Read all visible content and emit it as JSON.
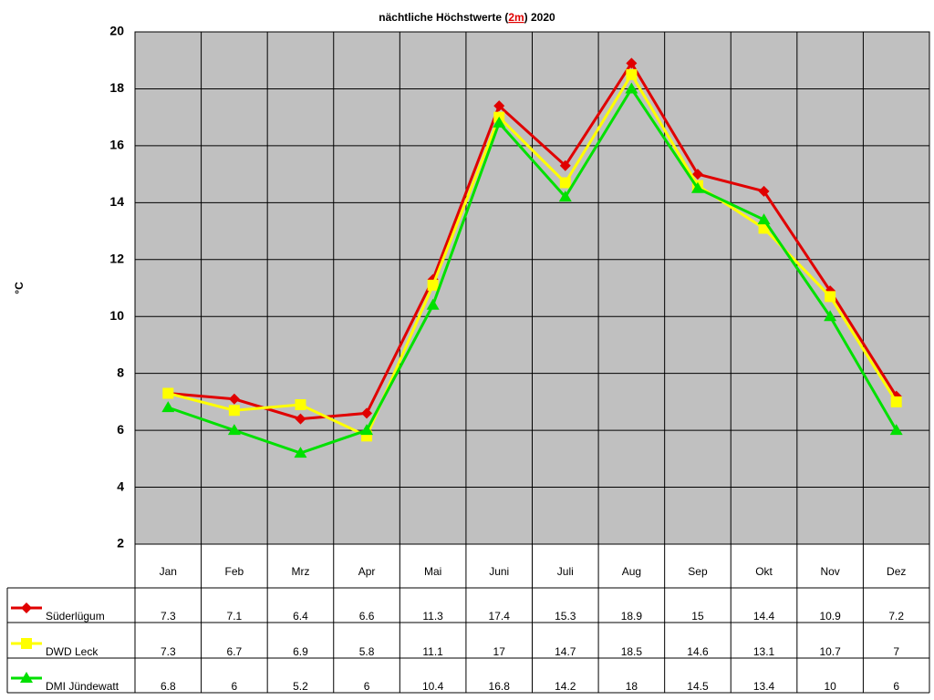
{
  "chart_data": {
    "type": "line",
    "title_parts": [
      "nächtliche Höchstwerte (",
      "2m",
      ") 2020"
    ],
    "y_label": "°C",
    "categories": [
      "Jan",
      "Feb",
      "Mrz",
      "Apr",
      "Mai",
      "Juni",
      "Juli",
      "Aug",
      "Sep",
      "Okt",
      "Nov",
      "Dez"
    ],
    "series": [
      {
        "name": "Süderlügum",
        "color": "#e00000",
        "marker": "diamond",
        "values": [
          7.3,
          7.1,
          6.4,
          6.6,
          11.3,
          17.4,
          15.3,
          18.9,
          15,
          14.4,
          10.9,
          7.2
        ]
      },
      {
        "name": "DWD Leck",
        "color": "#ffff00",
        "marker": "square",
        "values": [
          7.3,
          6.7,
          6.9,
          5.8,
          11.1,
          17,
          14.7,
          18.5,
          14.6,
          13.1,
          10.7,
          7
        ]
      },
      {
        "name": "DMI Jündewatt",
        "color": "#00e000",
        "marker": "triangle",
        "values": [
          6.8,
          6,
          5.2,
          6,
          10.4,
          16.8,
          14.2,
          18,
          14.5,
          13.4,
          10,
          6
        ]
      }
    ],
    "ylim": [
      2,
      20
    ],
    "yticks": [
      2,
      4,
      6,
      8,
      10,
      12,
      14,
      16,
      18,
      20
    ],
    "grid": true,
    "plot_background": "#c0c0c0"
  }
}
